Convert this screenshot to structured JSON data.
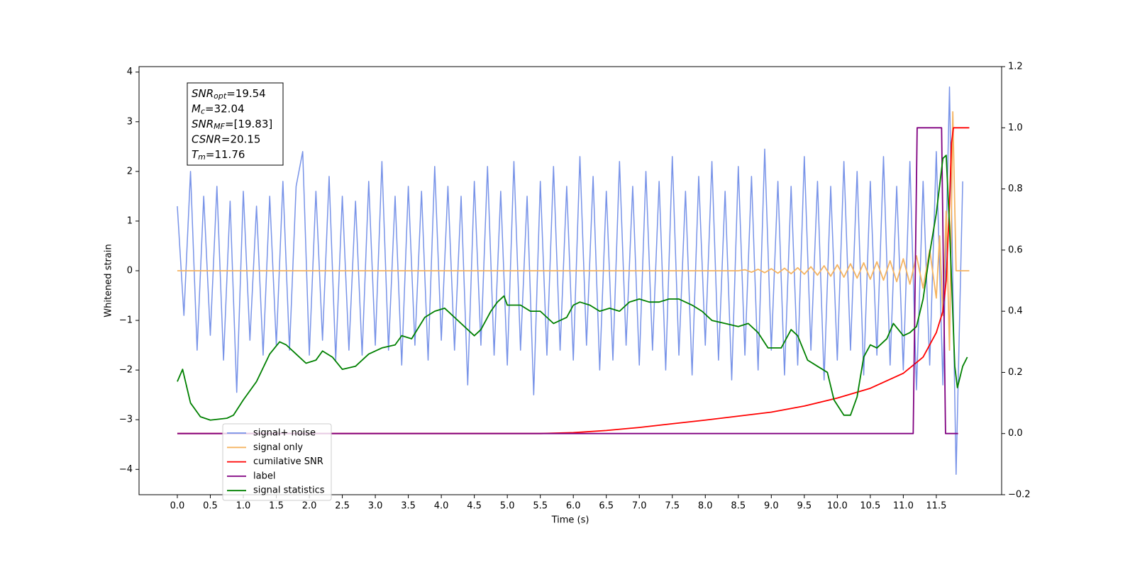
{
  "chart_data": {
    "type": "line",
    "xlabel": "Time (s)",
    "ylabel": "Whitened strain",
    "xlim": [
      -0.58,
      12.49
    ],
    "ylim": [
      -4.51,
      4.11
    ],
    "y2lim": [
      -0.2,
      1.2
    ],
    "xticks": [
      {
        "value": 0,
        "label": "0.0"
      },
      0.5,
      {
        "value": 1,
        "label": "1.0"
      },
      1.5,
      {
        "value": 2,
        "label": "2.0"
      },
      2.5,
      {
        "value": 3,
        "label": "3.0"
      },
      3.5,
      {
        "value": 4,
        "label": "4.0"
      },
      4.5,
      {
        "value": 5,
        "label": "5.0"
      },
      5.5,
      {
        "value": 6,
        "label": "6.0"
      },
      6.5,
      {
        "value": 7,
        "label": "7.0"
      },
      7.5,
      {
        "value": 8,
        "label": "8.0"
      },
      8.5,
      {
        "value": 9,
        "label": "9.0"
      },
      9.5,
      {
        "value": 10,
        "label": "10.0"
      },
      10.5,
      {
        "value": 11,
        "label": "11.0"
      },
      11.5
    ],
    "yticks": [
      {
        "value": -4,
        "label": "−4"
      },
      {
        "value": -3,
        "label": "−3"
      },
      {
        "value": -2,
        "label": "−2"
      },
      {
        "value": -1,
        "label": "−1"
      },
      0,
      1,
      2,
      3,
      4
    ],
    "y2ticks": [
      {
        "value": -0.2,
        "label": "−0.2"
      },
      {
        "value": 0,
        "label": "0.0"
      },
      0.2,
      0.4,
      0.6,
      0.8,
      {
        "value": 1,
        "label": "1.0"
      },
      1.2
    ],
    "annotation": [
      {
        "var": "SNR",
        "sub": "opt",
        "text": "=19.54"
      },
      {
        "var": "M",
        "sub": "c",
        "text": "=32.04"
      },
      {
        "var": "SNR",
        "sub": "MF",
        "text": "=[19.83]"
      },
      {
        "var": "CSNR",
        "sub": null,
        "text": "=20.15"
      },
      {
        "var": "T",
        "sub": "m",
        "text": "=11.76"
      }
    ],
    "series": [
      {
        "name": "signal+ noise",
        "color": "#7893e8",
        "axis": "y",
        "x": [
          0,
          0.1,
          0.2,
          0.3,
          0.4,
          0.5,
          0.6,
          0.7,
          0.8,
          0.9,
          1,
          1.1,
          1.2,
          1.3,
          1.4,
          1.5,
          1.6,
          1.7,
          1.8,
          1.9,
          2,
          2.1,
          2.2,
          2.3,
          2.4,
          2.5,
          2.6,
          2.7,
          2.8,
          2.9,
          3,
          3.1,
          3.2,
          3.3,
          3.4,
          3.5,
          3.6,
          3.7,
          3.8,
          3.9,
          4,
          4.1,
          4.2,
          4.3,
          4.4,
          4.5,
          4.6,
          4.7,
          4.8,
          4.9,
          5,
          5.1,
          5.2,
          5.3,
          5.4,
          5.5,
          5.6,
          5.7,
          5.8,
          5.9,
          6,
          6.1,
          6.2,
          6.3,
          6.4,
          6.5,
          6.6,
          6.7,
          6.8,
          6.9,
          7,
          7.1,
          7.2,
          7.3,
          7.4,
          7.5,
          7.6,
          7.7,
          7.8,
          7.9,
          8,
          8.1,
          8.2,
          8.3,
          8.4,
          8.5,
          8.6,
          8.7,
          8.8,
          8.9,
          9,
          9.1,
          9.2,
          9.3,
          9.4,
          9.5,
          9.6,
          9.7,
          9.8,
          9.9,
          10,
          10.1,
          10.2,
          10.3,
          10.4,
          10.5,
          10.6,
          10.7,
          10.8,
          10.9,
          11,
          11.1,
          11.2,
          11.3,
          11.4,
          11.5,
          11.6,
          11.7,
          11.8,
          11.9
        ],
        "values": [
          1.3,
          -0.9,
          2.0,
          -1.6,
          1.5,
          -1.3,
          1.7,
          -1.8,
          1.4,
          -2.45,
          1.6,
          -1.4,
          1.3,
          -1.7,
          1.5,
          -1.5,
          1.8,
          -1.6,
          1.7,
          2.4,
          -1.7,
          1.6,
          -1.4,
          1.9,
          -1.8,
          1.5,
          -1.6,
          1.4,
          -1.7,
          1.8,
          -1.5,
          2.2,
          -1.6,
          1.5,
          -1.9,
          1.7,
          -1.5,
          1.6,
          -1.8,
          2.1,
          -1.4,
          1.7,
          -1.6,
          1.5,
          -2.3,
          1.8,
          -1.5,
          2.1,
          -1.7,
          1.6,
          -1.9,
          2.2,
          -1.6,
          1.5,
          -2.5,
          1.8,
          -1.7,
          2.1,
          -1.6,
          1.7,
          -1.8,
          2.3,
          -1.5,
          1.9,
          -2.0,
          1.6,
          -1.8,
          2.2,
          -1.5,
          1.7,
          -1.9,
          2.0,
          -1.6,
          1.8,
          -2.0,
          2.3,
          -1.7,
          1.6,
          -2.1,
          1.9,
          -1.5,
          2.2,
          -1.8,
          1.6,
          -2.2,
          2.1,
          -1.7,
          1.9,
          -2.0,
          2.45,
          -1.6,
          1.8,
          -2.1,
          1.7,
          -1.9,
          2.3,
          -1.6,
          1.8,
          -2.2,
          1.7,
          -1.8,
          2.2,
          -1.6,
          2.0,
          -2.1,
          1.8,
          -1.7,
          2.3,
          -1.9,
          1.7,
          -2.0,
          2.2,
          -2.4,
          1.8,
          -1.9,
          2.4,
          -2.3,
          3.7,
          -4.1,
          1.8
        ]
      },
      {
        "name": "signal only",
        "color": "#f5b462",
        "axis": "y",
        "x": [
          0,
          8.5,
          8.6,
          8.7,
          8.8,
          8.9,
          9,
          9.1,
          9.2,
          9.3,
          9.4,
          9.5,
          9.6,
          9.7,
          9.8,
          9.9,
          10,
          10.1,
          10.2,
          10.3,
          10.4,
          10.5,
          10.6,
          10.7,
          10.8,
          10.9,
          11,
          11.1,
          11.2,
          11.3,
          11.4,
          11.5,
          11.55,
          11.6,
          11.65,
          11.7,
          11.75,
          11.8,
          12
        ],
        "values": [
          0,
          0,
          0.02,
          -0.03,
          0.03,
          -0.04,
          0.04,
          -0.05,
          0.05,
          -0.06,
          0.06,
          -0.07,
          0.08,
          -0.09,
          0.1,
          -0.11,
          0.12,
          -0.13,
          0.14,
          -0.15,
          0.16,
          -0.17,
          0.18,
          -0.19,
          0.2,
          -0.22,
          0.24,
          -0.27,
          0.3,
          -0.35,
          0.42,
          -0.55,
          0.7,
          -0.9,
          1.2,
          -1.6,
          3.2,
          0,
          0
        ]
      },
      {
        "name": "cumilative SNR",
        "color": "#ff0000",
        "axis": "y2",
        "x": [
          0,
          5.5,
          6,
          6.5,
          7,
          7.5,
          8,
          8.5,
          9,
          9.5,
          10,
          10.5,
          11,
          11.3,
          11.5,
          11.6,
          11.65,
          11.7,
          11.73,
          11.76,
          12
        ],
        "values": [
          0,
          0,
          0.003,
          0.01,
          0.02,
          0.032,
          0.044,
          0.057,
          0.07,
          0.09,
          0.116,
          0.148,
          0.197,
          0.25,
          0.33,
          0.4,
          0.5,
          0.75,
          0.95,
          1.0,
          1.0
        ]
      },
      {
        "name": "label",
        "color": "#800080",
        "axis": "y2",
        "x": [
          0,
          11.15,
          11.21,
          11.58,
          11.64,
          11.83
        ],
        "values": [
          0,
          0,
          1,
          1,
          0,
          0
        ]
      },
      {
        "name": "signal statistics",
        "color": "#008000",
        "axis": "y2",
        "x": [
          0,
          0.08,
          0.2,
          0.35,
          0.5,
          0.75,
          0.85,
          1,
          1.2,
          1.4,
          1.55,
          1.65,
          1.8,
          1.95,
          2.1,
          2.2,
          2.35,
          2.5,
          2.7,
          2.9,
          3.1,
          3.3,
          3.4,
          3.55,
          3.75,
          3.9,
          4.05,
          4.2,
          4.4,
          4.5,
          4.6,
          4.75,
          4.85,
          4.95,
          5,
          5.2,
          5.35,
          5.5,
          5.6,
          5.7,
          5.9,
          6,
          6.1,
          6.25,
          6.4,
          6.55,
          6.7,
          6.85,
          7,
          7.15,
          7.3,
          7.45,
          7.6,
          7.8,
          7.95,
          8.1,
          8.3,
          8.5,
          8.65,
          8.8,
          8.95,
          9.15,
          9.3,
          9.4,
          9.55,
          9.7,
          9.85,
          9.95,
          10.1,
          10.2,
          10.3,
          10.4,
          10.5,
          10.6,
          10.75,
          10.85,
          11,
          11.1,
          11.2,
          11.3,
          11.4,
          11.5,
          11.6,
          11.65,
          11.7,
          11.78,
          11.82,
          11.9,
          11.97
        ],
        "values": [
          0.17,
          0.21,
          0.1,
          0.055,
          0.044,
          0.05,
          0.06,
          0.11,
          0.17,
          0.26,
          0.3,
          0.29,
          0.26,
          0.23,
          0.24,
          0.27,
          0.25,
          0.21,
          0.22,
          0.26,
          0.28,
          0.29,
          0.32,
          0.31,
          0.38,
          0.4,
          0.41,
          0.38,
          0.34,
          0.32,
          0.34,
          0.4,
          0.43,
          0.45,
          0.42,
          0.42,
          0.4,
          0.4,
          0.38,
          0.36,
          0.38,
          0.42,
          0.43,
          0.42,
          0.4,
          0.41,
          0.4,
          0.43,
          0.44,
          0.43,
          0.43,
          0.44,
          0.44,
          0.42,
          0.4,
          0.37,
          0.36,
          0.35,
          0.36,
          0.33,
          0.28,
          0.28,
          0.34,
          0.32,
          0.24,
          0.22,
          0.2,
          0.11,
          0.06,
          0.06,
          0.12,
          0.25,
          0.29,
          0.28,
          0.31,
          0.36,
          0.32,
          0.33,
          0.35,
          0.44,
          0.59,
          0.72,
          0.9,
          0.91,
          0.68,
          0.22,
          0.15,
          0.22,
          0.25
        ]
      }
    ]
  }
}
